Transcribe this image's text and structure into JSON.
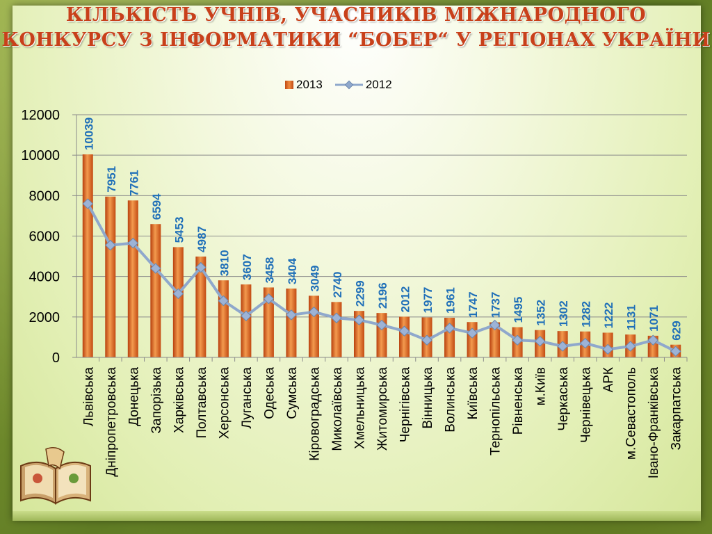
{
  "title_line1": "Кількість учнів, учасників  міжнародного",
  "title_line2": "конкурсу з інформатики “Бобер“ у регіонах України",
  "colors": {
    "bar": "#e0701e",
    "line": "#8fa8cc",
    "label": "#1f6fb8",
    "title": "#c8401a"
  },
  "chart_data": {
    "type": "bar",
    "legend_position": "top",
    "grid": true,
    "ylim": [
      0,
      12000
    ],
    "yticks": [
      0,
      2000,
      4000,
      6000,
      8000,
      10000,
      12000
    ],
    "categories": [
      "Львівська",
      "Дніпропетровська",
      "Донецька",
      "Запорізька",
      "Харківська",
      "Полтавська",
      "Херсонська",
      "Луганська",
      "Одеська",
      "Сумська",
      "Кіровоградська",
      "Миколаївська",
      "Хмельницька",
      "Житомирська",
      "Чернігівська",
      "Вінницька",
      "Волинська",
      "Київська",
      "Тернопільська",
      "Рівненська",
      "м.Київ",
      "Черкаська",
      "Чернівецька",
      "АРК",
      "м.Севастополь",
      "Івано-Франківська",
      "Закарпатська"
    ],
    "series": [
      {
        "name": "2013",
        "type": "bar",
        "values": [
          10039,
          7951,
          7761,
          6594,
          5453,
          4987,
          3810,
          3607,
          3458,
          3404,
          3049,
          2740,
          2299,
          2196,
          2012,
          1977,
          1961,
          1747,
          1737,
          1495,
          1352,
          1302,
          1282,
          1222,
          1131,
          1071,
          629
        ]
      },
      {
        "name": "2012",
        "type": "line",
        "values": [
          7600,
          5550,
          5650,
          4400,
          3150,
          4450,
          2800,
          2050,
          2900,
          2100,
          2250,
          1950,
          1850,
          1600,
          1300,
          850,
          1450,
          1200,
          1600,
          850,
          800,
          550,
          700,
          400,
          550,
          850,
          300
        ]
      }
    ]
  }
}
